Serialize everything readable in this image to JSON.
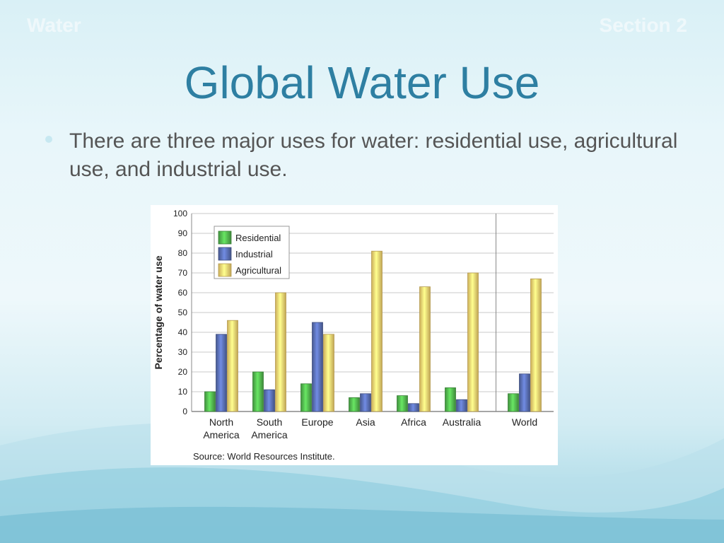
{
  "header": {
    "left": "Water",
    "right": "Section 2"
  },
  "title": "Global Water Use",
  "bullet": "There are three major uses for water: residential use, agricultural use, and industrial use.",
  "chart_data": {
    "type": "bar",
    "categories": [
      [
        "North",
        "America"
      ],
      [
        "South",
        "America"
      ],
      [
        "Europe"
      ],
      [
        "Asia"
      ],
      [
        "Africa"
      ],
      [
        "Australia"
      ],
      [
        "World"
      ]
    ],
    "series": [
      {
        "name": "Residential",
        "color": "#4daa49",
        "values": [
          10,
          20,
          14,
          7,
          8,
          12,
          9
        ]
      },
      {
        "name": "Industrial",
        "color": "#5468a8",
        "values": [
          39,
          11,
          45,
          9,
          4,
          6,
          19
        ]
      },
      {
        "name": "Agricultural",
        "color": "#f0cd6a",
        "values": [
          46,
          60,
          39,
          81,
          63,
          70,
          67
        ]
      }
    ],
    "ylabel": "Percentage of water use",
    "ylim": [
      0,
      100
    ],
    "yticks": [
      0,
      10,
      20,
      30,
      40,
      50,
      60,
      70,
      80,
      90,
      100
    ],
    "grid": true,
    "legend": "top-left",
    "source": "Source: World Resources Institute."
  }
}
